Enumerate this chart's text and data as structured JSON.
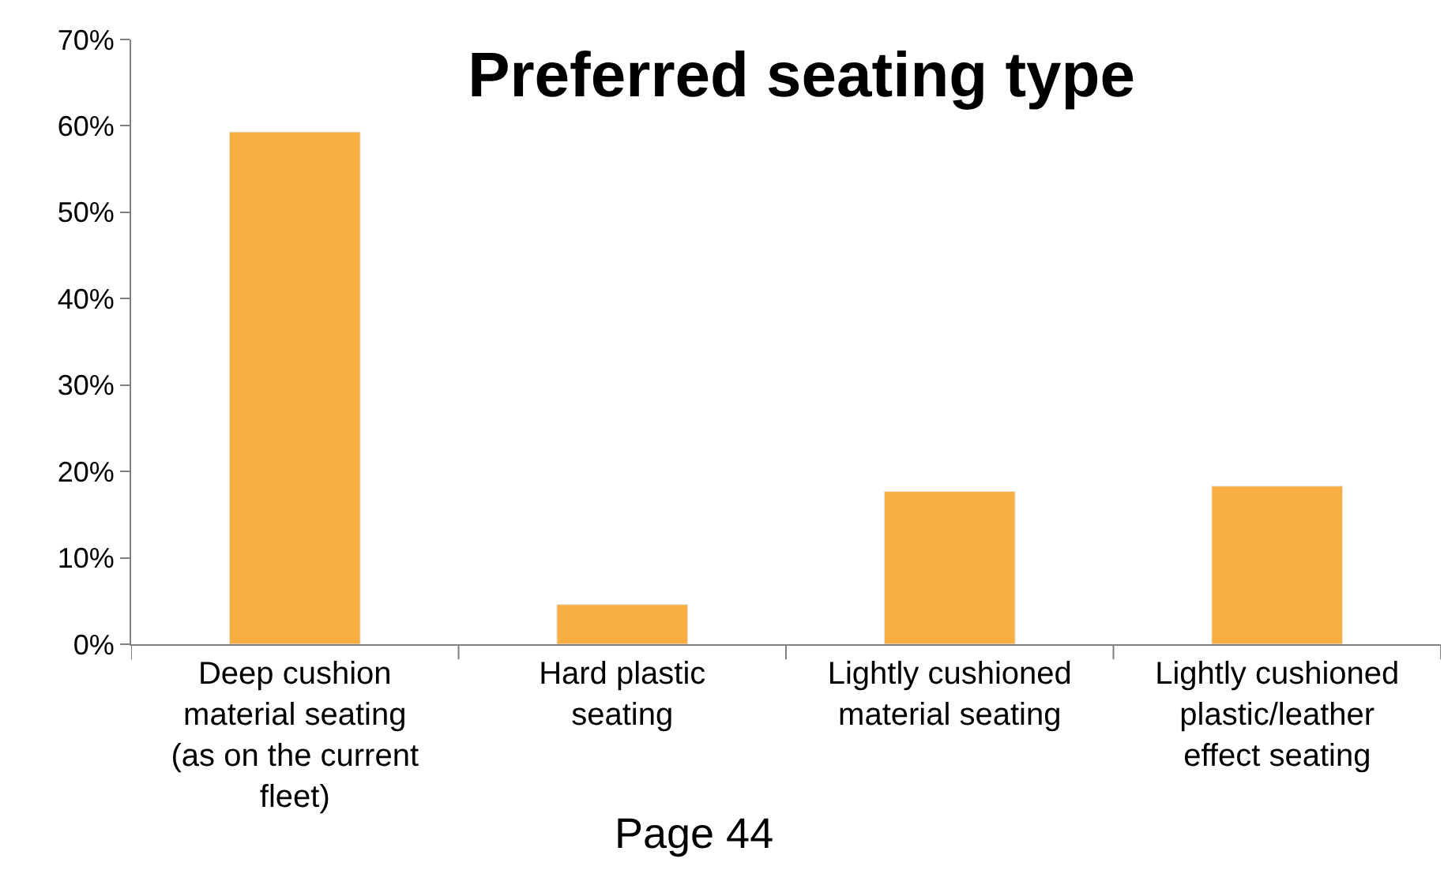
{
  "chart_data": {
    "type": "bar",
    "title": "Preferred seating type",
    "categories": [
      "Deep cushion material seating (as on the current fleet)",
      "Hard plastic seating",
      "Lightly cushioned material seating",
      "Lightly cushioned plastic/leather effect seating"
    ],
    "values": [
      0.593,
      0.046,
      0.177,
      0.183
    ],
    "color": "#f9ae42",
    "ylim": [
      0,
      0.7
    ],
    "yticks": [
      {
        "value": 0,
        "label": "0%"
      },
      {
        "value": 0.1,
        "label": "10%"
      },
      {
        "value": 0.2,
        "label": "20%"
      },
      {
        "value": 0.3,
        "label": "30%"
      },
      {
        "value": 0.4,
        "label": "40%"
      },
      {
        "value": 0.5,
        "label": "50%"
      },
      {
        "value": 0.6,
        "label": "60%"
      },
      {
        "value": 0.7,
        "label": "70%"
      }
    ],
    "annotations": [
      "Page 44"
    ]
  }
}
